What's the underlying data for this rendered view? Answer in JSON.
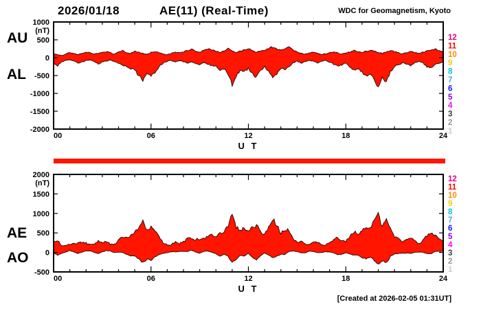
{
  "header": {
    "date": "2026/01/18",
    "title": "AE(11) (Real-Time)",
    "org": "WDC for Geomagnetism, Kyoto"
  },
  "footer": {
    "created": "[Created at 2026-02-05 01:31UT]"
  },
  "colors": {
    "fill": "#ff1500",
    "bar": "#ff1500",
    "frame": "#000000"
  },
  "station_scale": {
    "values": [
      "12",
      "11",
      "10",
      "9",
      "8",
      "7",
      "6",
      "5",
      "4",
      "3",
      "2",
      "1"
    ],
    "colors": [
      "#e6007e",
      "#ff0000",
      "#ff8c00",
      "#ffc800",
      "#00c8d7",
      "#46a0ff",
      "#1414ff",
      "#8c00d7",
      "#ff00ff",
      "#3c3c3c",
      "#969696",
      "#cdcdcd"
    ]
  },
  "chart_data": [
    {
      "type": "area",
      "name": "AU/AL panel",
      "side_labels": [
        "AU",
        "AL"
      ],
      "ylabel_unit": "(nT)",
      "ylim": [
        -2000,
        1000
      ],
      "yticks": [
        1000,
        500,
        0,
        -500,
        -1000,
        -1500,
        -2000
      ],
      "xlim": [
        0,
        24
      ],
      "xticks": [
        0,
        6,
        12,
        18,
        24
      ],
      "xtick_labels": [
        "00",
        "06",
        "12",
        "18",
        "24"
      ],
      "xlabel": "U T",
      "x_start": 0,
      "x_step": 0.25,
      "series": [
        {
          "name": "AU",
          "values": [
            120,
            80,
            60,
            100,
            150,
            120,
            90,
            130,
            160,
            140,
            100,
            120,
            150,
            180,
            140,
            100,
            160,
            200,
            150,
            120,
            180,
            150,
            120,
            100,
            150,
            180,
            140,
            100,
            80,
            120,
            150,
            130,
            170,
            200,
            230,
            180,
            150,
            200,
            250,
            220,
            180,
            150,
            200,
            250,
            200,
            150,
            180,
            220,
            250,
            200,
            150,
            180,
            220,
            260,
            300,
            250,
            200,
            250,
            300,
            220,
            150,
            120,
            100,
            130,
            150,
            120,
            90,
            110,
            140,
            160,
            130,
            100,
            130,
            160,
            200,
            170,
            140,
            180,
            220,
            180,
            150,
            120,
            160,
            200,
            170,
            140,
            110,
            140,
            170,
            150,
            120,
            150,
            180,
            220,
            250,
            200,
            180
          ]
        },
        {
          "name": "AL",
          "values": [
            -150,
            -220,
            -120,
            -80,
            -60,
            -100,
            -150,
            -120,
            -80,
            -60,
            -100,
            -180,
            -120,
            -90,
            -70,
            -110,
            -150,
            -200,
            -250,
            -300,
            -350,
            -500,
            -650,
            -450,
            -550,
            -400,
            -250,
            -150,
            -100,
            -80,
            -120,
            -90,
            -110,
            -150,
            -120,
            -160,
            -200,
            -150,
            -180,
            -220,
            -250,
            -350,
            -300,
            -450,
            -750,
            -500,
            -350,
            -400,
            -300,
            -450,
            -550,
            -350,
            -250,
            -400,
            -550,
            -450,
            -300,
            -350,
            -250,
            -150,
            -100,
            -150,
            -120,
            -80,
            -100,
            -140,
            -100,
            -80,
            -120,
            -180,
            -250,
            -200,
            -150,
            -250,
            -350,
            -300,
            -400,
            -500,
            -450,
            -600,
            -800,
            -550,
            -700,
            -400,
            -250,
            -200,
            -150,
            -180,
            -220,
            -150,
            -100,
            -150,
            -250,
            -300,
            -200,
            -150,
            -120
          ]
        }
      ]
    },
    {
      "type": "area",
      "name": "AE/AO panel",
      "side_labels": [
        "AE",
        "AO"
      ],
      "ylabel_unit": "(nT)",
      "ylim": [
        -500,
        2000
      ],
      "yticks": [
        2000,
        1500,
        1000,
        500,
        0,
        -500
      ],
      "xlim": [
        0,
        24
      ],
      "xticks": [
        0,
        6,
        12,
        18,
        24
      ],
      "xtick_labels": [
        "00",
        "06",
        "12",
        "18",
        "24"
      ],
      "xlabel": "U T",
      "x_start": 0,
      "x_step": 0.25,
      "series": [
        {
          "name": "AE",
          "values": [
            270,
            300,
            180,
            180,
            210,
            220,
            240,
            250,
            240,
            200,
            200,
            300,
            270,
            270,
            210,
            210,
            310,
            400,
            400,
            420,
            530,
            650,
            770,
            550,
            700,
            580,
            390,
            250,
            180,
            200,
            270,
            220,
            280,
            350,
            350,
            340,
            350,
            350,
            430,
            440,
            430,
            500,
            500,
            700,
            950,
            650,
            530,
            620,
            550,
            650,
            700,
            530,
            470,
            660,
            850,
            700,
            500,
            600,
            550,
            370,
            250,
            270,
            220,
            210,
            250,
            260,
            190,
            190,
            260,
            340,
            380,
            300,
            280,
            410,
            550,
            470,
            540,
            680,
            670,
            780,
            950,
            670,
            860,
            600,
            420,
            340,
            260,
            320,
            390,
            300,
            220,
            300,
            430,
            520,
            450,
            350,
            300
          ]
        },
        {
          "name": "AO",
          "values": [
            -15,
            -70,
            -30,
            10,
            45,
            10,
            -30,
            5,
            40,
            40,
            0,
            -30,
            15,
            45,
            35,
            -5,
            5,
            0,
            -50,
            -90,
            -85,
            -175,
            -265,
            -175,
            -200,
            -110,
            -55,
            -25,
            -10,
            20,
            15,
            20,
            30,
            25,
            55,
            10,
            -25,
            25,
            35,
            0,
            -35,
            -100,
            -50,
            -100,
            -275,
            -175,
            -85,
            -90,
            -25,
            -125,
            -200,
            -85,
            -15,
            -70,
            -125,
            -100,
            -50,
            -50,
            25,
            35,
            25,
            -15,
            -10,
            25,
            25,
            -10,
            -5,
            15,
            10,
            -10,
            -60,
            -50,
            -10,
            -45,
            -75,
            -65,
            -130,
            -160,
            -115,
            -210,
            -325,
            -215,
            -270,
            -100,
            -40,
            -30,
            -20,
            -20,
            -25,
            0,
            10,
            0,
            -35,
            -40,
            25,
            25,
            30
          ]
        }
      ]
    }
  ]
}
